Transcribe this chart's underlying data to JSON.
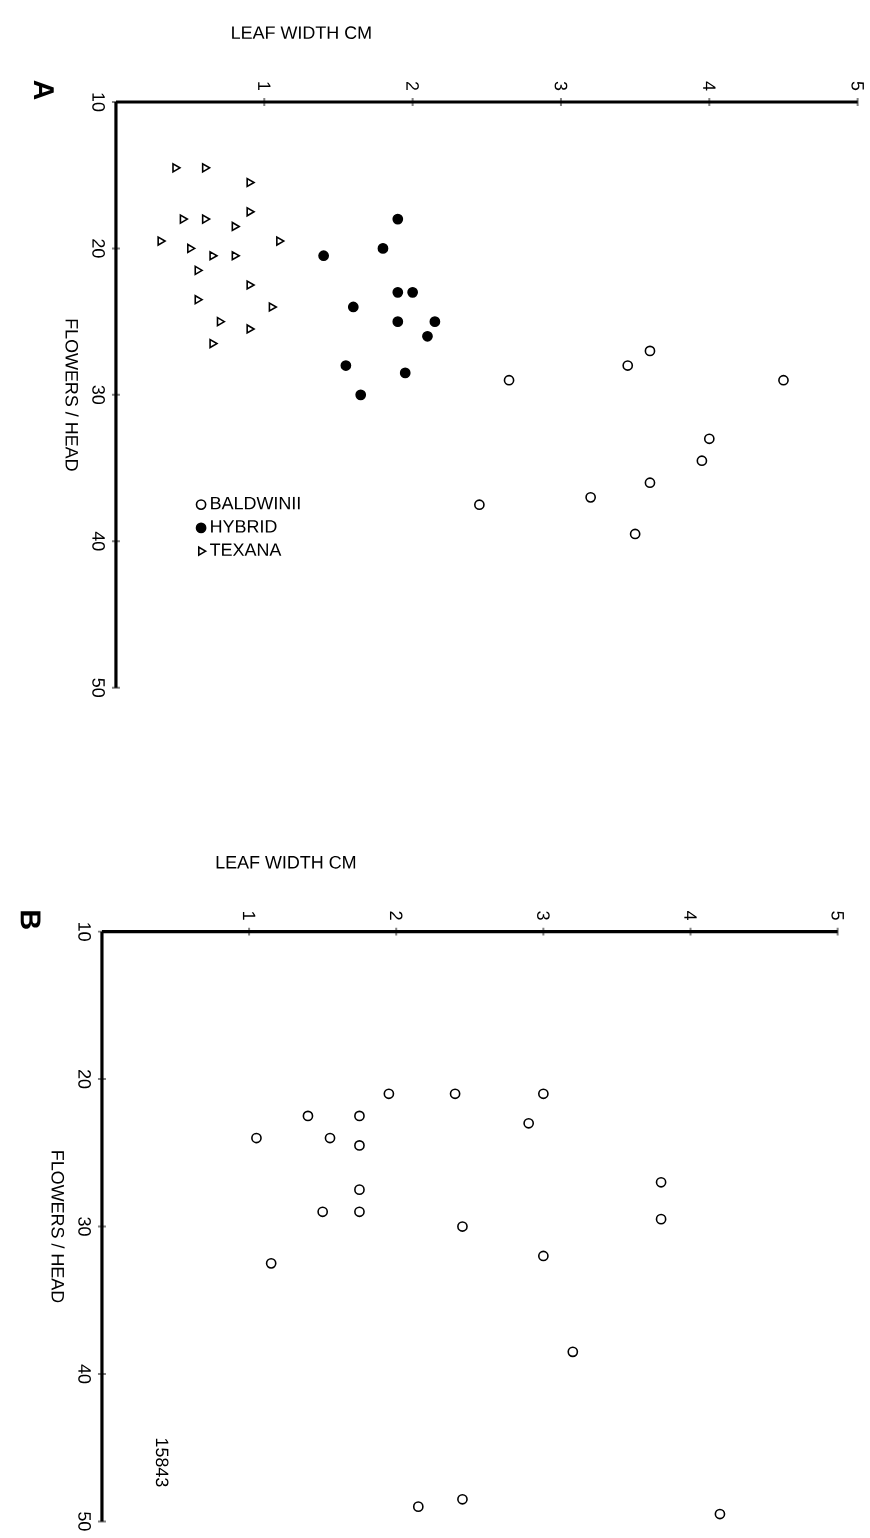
{
  "chart_data": [
    {
      "type": "scatter",
      "title": "A",
      "xlabel": "LEAF WIDTH CM",
      "ylabel": "FLOWERS / HEAD",
      "xlim": [
        0,
        5
      ],
      "ylim": [
        50,
        10
      ],
      "xticks": [
        1,
        2,
        3,
        4,
        5
      ],
      "yticks": [
        10,
        20,
        30,
        40,
        50
      ],
      "legend": "bottom left",
      "grid": false,
      "series": [
        {
          "name": "BALDWINII",
          "color": "#000000",
          "marker": "circle",
          "x": [
            3.6,
            3.45,
            2.65,
            4.5,
            4.0,
            3.95,
            3.6,
            3.2,
            2.45,
            3.5
          ],
          "values": [
            27,
            28,
            29,
            29,
            33,
            34.5,
            36,
            37,
            37.5,
            39.5
          ]
        },
        {
          "name": "HYBRID",
          "color": "#000000",
          "marker": "filled circle",
          "x": [
            1.9,
            1.8,
            1.4,
            2.0,
            1.9,
            1.6,
            1.9,
            2.15,
            2.1,
            1.55,
            1.95,
            1.65
          ],
          "values": [
            18,
            20,
            20.5,
            23,
            23,
            24,
            25,
            25,
            26,
            28,
            28.5,
            30
          ]
        },
        {
          "name": "TEXANA",
          "color": "#000000",
          "marker": "triangle",
          "x": [
            0.4,
            0.6,
            0.9,
            0.9,
            0.45,
            0.6,
            0.8,
            0.3,
            0.5,
            0.65,
            0.8,
            1.1,
            0.55,
            0.9,
            0.55,
            1.05,
            0.7,
            0.9,
            0.65
          ],
          "values": [
            14.5,
            14.5,
            15.5,
            17.5,
            18,
            18,
            18.5,
            19.5,
            20,
            20.5,
            20.5,
            19.5,
            21.5,
            22.5,
            23.5,
            24,
            25,
            25.5,
            26.5
          ]
        }
      ]
    },
    {
      "type": "scatter",
      "title": "B",
      "xlabel": "LEAF WIDTH CM",
      "ylabel": "FLOWERS / HEAD",
      "xlim": [
        0,
        5
      ],
      "ylim": [
        50,
        10
      ],
      "xticks": [
        1,
        2,
        3,
        4,
        5
      ],
      "yticks": [
        10,
        20,
        30,
        40,
        50
      ],
      "grid": false,
      "marker": "circle",
      "color": "#000000",
      "x": [
        1.95,
        2.4,
        3.0,
        1.4,
        1.75,
        2.9,
        1.05,
        1.55,
        1.75,
        3.8,
        1.75,
        1.5,
        1.75,
        3.8,
        2.45,
        3.0,
        1.15,
        3.2,
        2.45,
        2.15,
        4.2
      ],
      "values": [
        21,
        21,
        21,
        22.5,
        22.5,
        23,
        24,
        24,
        24.5,
        27,
        27.5,
        29,
        29,
        29.5,
        30,
        32,
        32.5,
        38.5,
        48.5,
        49,
        49.5
      ],
      "annotations": [
        "15843"
      ]
    }
  ]
}
